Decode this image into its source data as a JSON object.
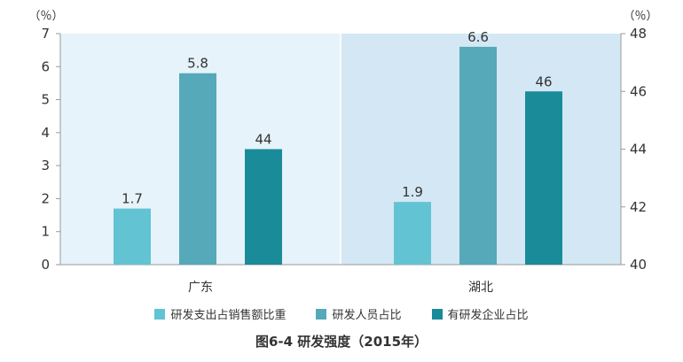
{
  "chart_data": {
    "type": "bar",
    "title": "图6-4 研发强度（2015年）",
    "categories": [
      "广东",
      "湖北"
    ],
    "left_axis": {
      "unit_label": "（％）",
      "range": [
        0,
        7
      ],
      "ticks": [
        "0",
        "1",
        "2",
        "3",
        "4",
        "5",
        "6",
        "7"
      ]
    },
    "right_axis": {
      "unit_label": "（％）",
      "range": [
        40,
        48
      ],
      "ticks": [
        "40",
        "42",
        "44",
        "46",
        "48"
      ]
    },
    "series": [
      {
        "name": "研发支出占销售额比重",
        "axis": "left",
        "color": "#62c3d3",
        "values": [
          1.7,
          1.9
        ],
        "labels": [
          "1.7",
          "1.9"
        ]
      },
      {
        "name": "研发人员占比",
        "axis": "left",
        "color": "#55a9b9",
        "values": [
          5.8,
          6.6
        ],
        "labels": [
          "5.8",
          "6.6"
        ]
      },
      {
        "name": "有研发企业占比",
        "axis": "right",
        "color": "#1a8b99",
        "values": [
          44,
          46
        ],
        "labels": [
          "44",
          "46"
        ]
      }
    ],
    "panel_colors": [
      "#e6f3fa",
      "#d3e8f4"
    ],
    "grid": false,
    "legend_position": "bottom"
  }
}
